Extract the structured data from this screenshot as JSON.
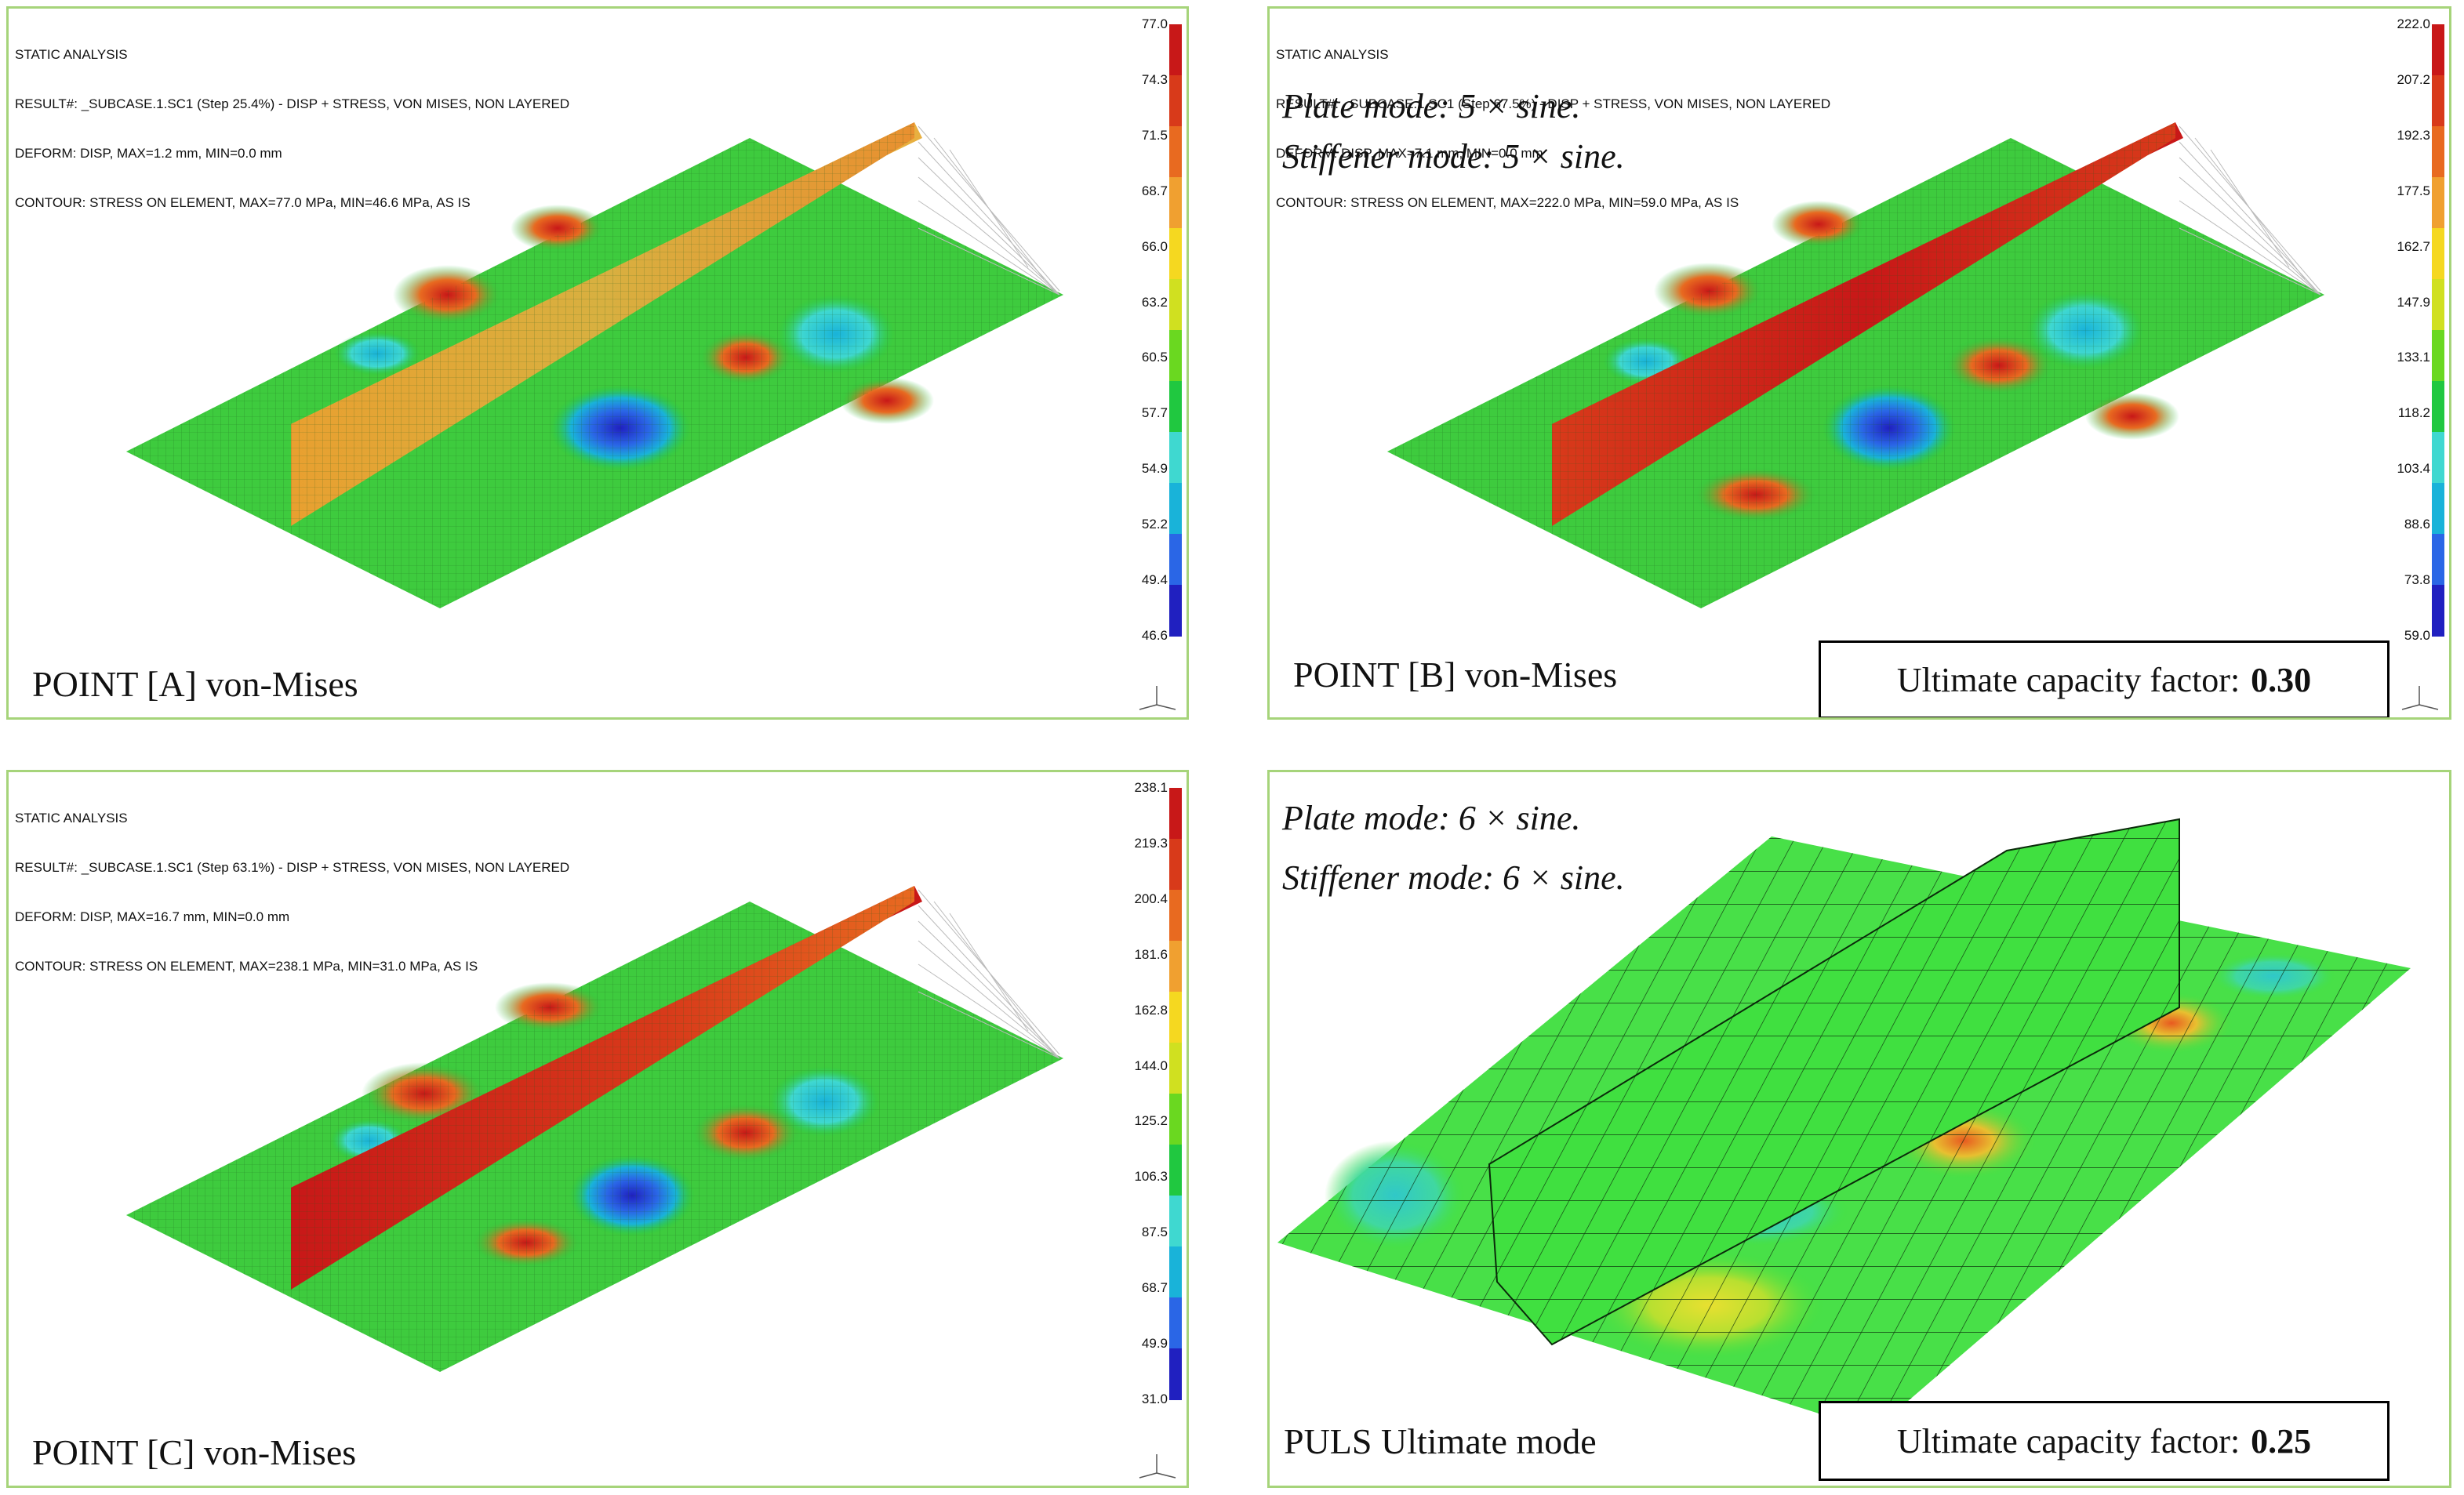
{
  "colors": {
    "panel_border": "#a6d47a",
    "contour_scale": [
      "#2020c0",
      "#2a66e6",
      "#19b3d9",
      "#3fd8d0",
      "#20c840",
      "#6ad820",
      "#d0e020",
      "#f5d820",
      "#f0a030",
      "#e86a20",
      "#d83a1a",
      "#c81818"
    ]
  },
  "panels": [
    {
      "id": "A",
      "info": [
        "STATIC ANALYSIS",
        "RESULT#: _SUBCASE.1.SC1 (Step 25.4%) - DISP + STRESS, VON MISES, NON LAYERED",
        "DEFORM: DISP, MAX=1.2 mm, MIN=0.0 mm",
        "CONTOUR: STRESS ON ELEMENT, MAX=77.0 MPa, MIN=46.6 MPa, AS IS"
      ],
      "legend": [
        "77.0",
        "74.3",
        "71.5",
        "68.7",
        "66.0",
        "63.2",
        "60.5",
        "57.7",
        "54.9",
        "52.2",
        "49.4",
        "46.6"
      ],
      "caption": "POINT [A] von-Mises"
    },
    {
      "id": "B",
      "info": [
        "STATIC ANALYSIS",
        "RESULT#: _SUBCASE.1.SC1 (Step 67.5%) - DISP + STRESS, VON MISES, NON LAYERED",
        "DEFORM: DISP, MAX=7.1 mm, MIN=0.0 mm",
        "CONTOUR: STRESS ON ELEMENT, MAX=222.0 MPa, MIN=59.0 MPa, AS IS"
      ],
      "legend": [
        "222.0",
        "207.2",
        "192.3",
        "177.5",
        "162.7",
        "147.9",
        "133.1",
        "118.2",
        "103.4",
        "88.6",
        "73.8",
        "59.0"
      ],
      "plate_mode": "Plate mode: 5 × sine.",
      "stiffener_mode": "Stiffener mode: 5 × sine.",
      "caption": "POINT [B] von-Mises",
      "ucf_label": "Ultimate capacity factor:",
      "ucf_value": "0.30"
    },
    {
      "id": "C",
      "info": [
        "STATIC ANALYSIS",
        "RESULT#: _SUBCASE.1.SC1 (Step 63.1%) - DISP + STRESS, VON MISES, NON LAYERED",
        "DEFORM: DISP, MAX=16.7 mm, MIN=0.0 mm",
        "CONTOUR: STRESS ON ELEMENT, MAX=238.1 MPa, MIN=31.0 MPa, AS IS"
      ],
      "legend": [
        "238.1",
        "219.3",
        "200.4",
        "181.6",
        "162.8",
        "144.0",
        "125.2",
        "106.3",
        "87.5",
        "68.7",
        "49.9",
        "31.0"
      ],
      "caption": "POINT [C] von-Mises"
    },
    {
      "id": "D",
      "plate_mode": "Plate mode: 6 × sine.",
      "stiffener_mode": "Stiffener mode: 6 × sine.",
      "caption": "PULS Ultimate mode",
      "ucf_label": "Ultimate capacity factor:",
      "ucf_value": "0.25"
    }
  ]
}
